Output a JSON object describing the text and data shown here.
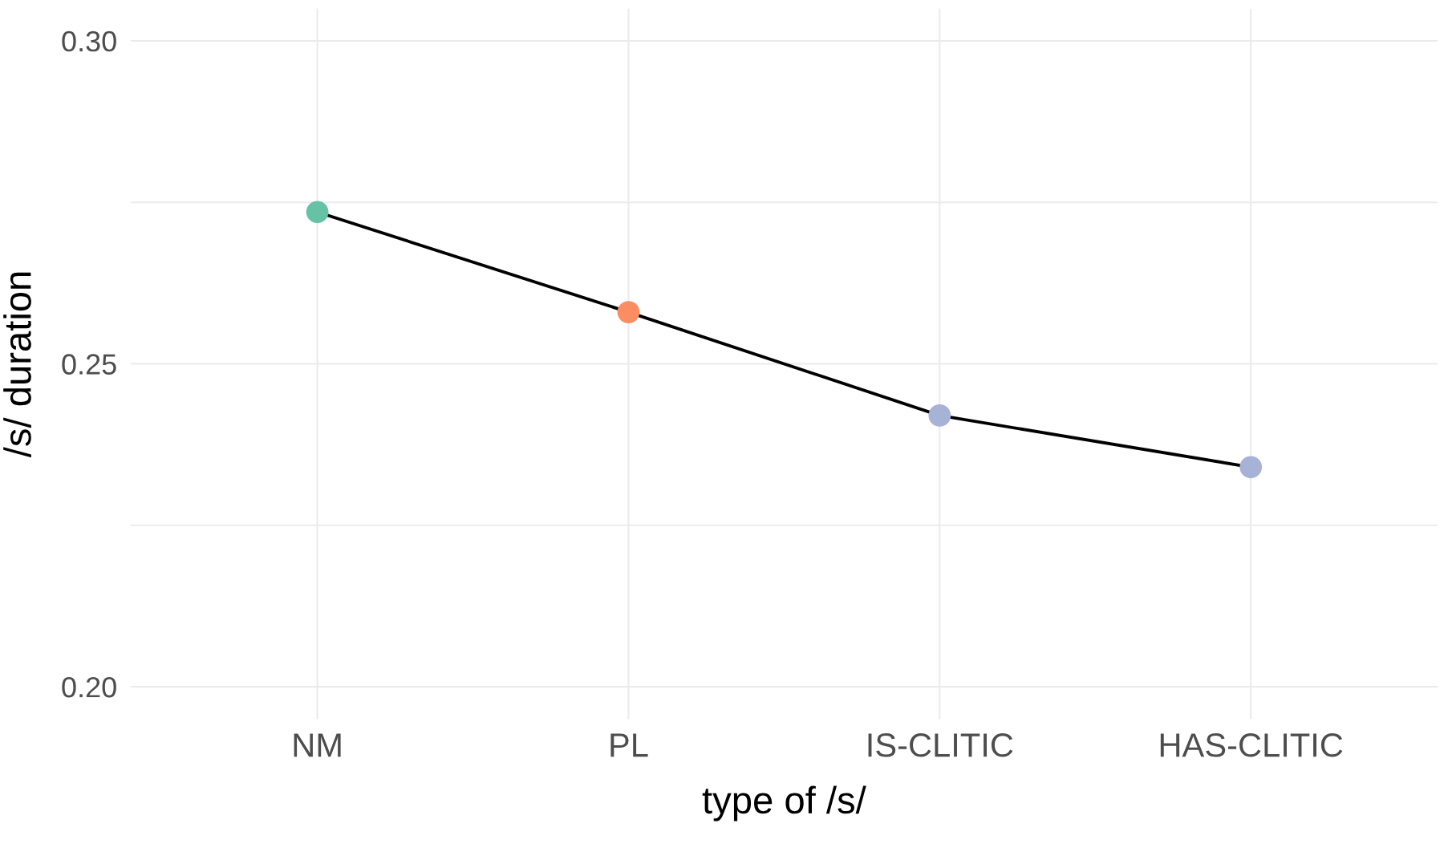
{
  "chart_data": {
    "type": "line",
    "xlabel": "type of /s/",
    "ylabel": "/s/ duration",
    "categories": [
      "NM",
      "PL",
      "IS-CLITIC",
      "HAS-CLITIC"
    ],
    "series": [
      {
        "color": "#000000",
        "colors": [
          "#66c2a5",
          "#fc8d62",
          "#a6b3d6",
          "#a6b3d6"
        ],
        "values": [
          0.2735,
          0.258,
          0.242,
          0.234
        ]
      }
    ],
    "ylim": [
      0.195,
      0.305
    ],
    "yticks": [
      {
        "value": 0.2,
        "label": "0.20"
      },
      {
        "value": 0.225,
        "label": null
      },
      {
        "value": 0.25,
        "label": "0.25"
      },
      {
        "value": 0.275,
        "label": null
      },
      {
        "value": 0.3,
        "label": "0.30"
      }
    ],
    "grid": true,
    "marker": "circle",
    "line_style": "solid",
    "legend": false
  }
}
